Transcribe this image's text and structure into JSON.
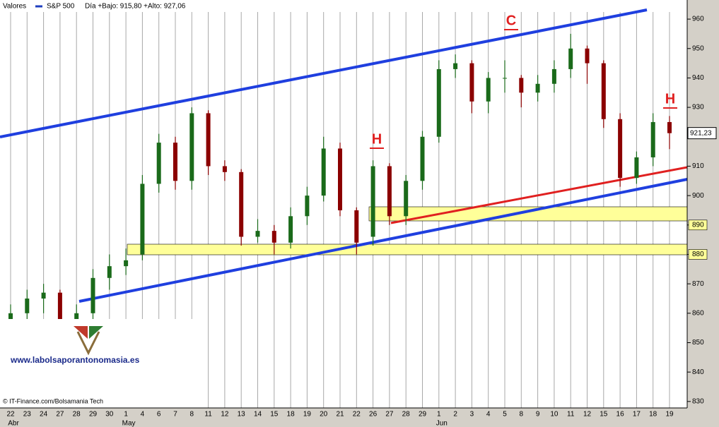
{
  "chart_data": {
    "type": "candlestick",
    "header_label": "Valores",
    "series_name": "S&P 500",
    "header_stats": "Día +Bajo: 915,80 +Alto: 927,06",
    "categories": [
      "22",
      "23",
      "24",
      "27",
      "28",
      "29",
      "30",
      "1",
      "4",
      "6",
      "7",
      "8",
      "11",
      "12",
      "13",
      "14",
      "15",
      "18",
      "19",
      "20",
      "21",
      "22",
      "26",
      "27",
      "28",
      "29",
      "1",
      "2",
      "3",
      "4",
      "5",
      "8",
      "9",
      "10",
      "11",
      "12",
      "15",
      "16",
      "17",
      "18",
      "19"
    ],
    "months": [
      "Abr",
      "May",
      "Jun"
    ],
    "open": [
      857,
      860,
      865,
      867,
      858,
      860,
      872,
      876,
      880,
      904,
      918,
      905,
      928,
      910,
      908,
      886,
      888,
      884,
      893,
      900,
      916,
      895,
      886,
      910,
      893,
      905,
      920,
      943,
      945,
      932,
      940,
      940,
      935,
      938,
      943,
      950,
      945,
      926,
      906,
      913,
      925
    ],
    "high": [
      863,
      868,
      870,
      868,
      863,
      875,
      880,
      882,
      907,
      921,
      920,
      930,
      929,
      912,
      909,
      892,
      890,
      896,
      903,
      920,
      918,
      896,
      912,
      911,
      907,
      922,
      946,
      948,
      946,
      942,
      946,
      941,
      941,
      946,
      955,
      951,
      946,
      928,
      915,
      928,
      927.06
    ],
    "low": [
      856,
      857,
      860,
      855,
      854,
      858,
      868,
      873,
      878,
      901,
      902,
      902,
      907,
      905,
      883,
      884,
      880,
      882,
      890,
      898,
      893,
      880,
      883,
      890,
      890,
      902,
      918,
      940,
      928,
      928,
      935,
      930,
      932,
      935,
      940,
      938,
      923,
      903,
      904,
      910,
      915.8
    ],
    "close": [
      860,
      865,
      867,
      858,
      860,
      872,
      876,
      878,
      904,
      918,
      905,
      928,
      910,
      908,
      886,
      888,
      884,
      893,
      900,
      916,
      895,
      884,
      910,
      893,
      905,
      920,
      943,
      945,
      932,
      940,
      940,
      935,
      938,
      943,
      950,
      945,
      926,
      906,
      913,
      925,
      921.23
    ],
    "up_color": "#1a6a1a",
    "down_color": "#8b0000",
    "ylim": [
      827.8,
      966.5
    ],
    "yticks": [
      830,
      840,
      850,
      860,
      870,
      880,
      890,
      900,
      910,
      920,
      930,
      940,
      950,
      960
    ],
    "price_tag": {
      "value": 921.23,
      "label": "921,23"
    },
    "annotations": [
      "C",
      "H",
      "H"
    ],
    "source": "© IT-Finance.com/Bolsamania Tech",
    "watermark": "www.labolsaporantonomasia.es"
  }
}
